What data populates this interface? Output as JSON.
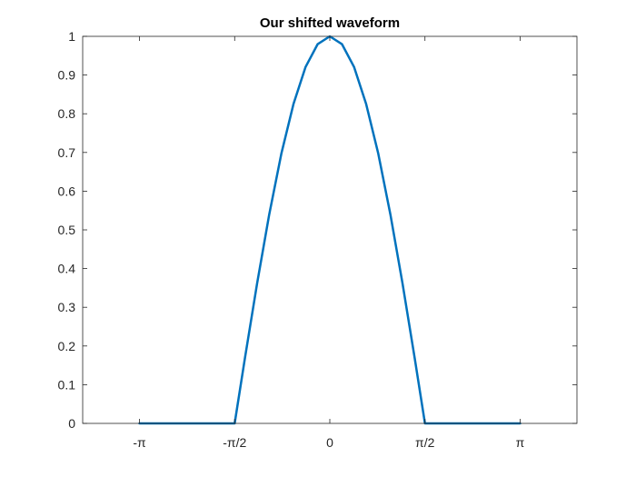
{
  "chart_data": {
    "type": "line",
    "title": "Our shifted waveform",
    "xlabel": "",
    "ylabel": "",
    "xlim": [
      -4.08,
      4.08
    ],
    "ylim": [
      0,
      1
    ],
    "grid": false,
    "box": true,
    "x_ticks": [
      {
        "value": -3.14159,
        "label": "-π"
      },
      {
        "value": -1.5708,
        "label": "-π/2"
      },
      {
        "value": 0,
        "label": "0"
      },
      {
        "value": 1.5708,
        "label": "π/2"
      },
      {
        "value": 3.14159,
        "label": "π"
      }
    ],
    "y_ticks": [
      {
        "value": 0,
        "label": "0"
      },
      {
        "value": 0.1,
        "label": "0.1"
      },
      {
        "value": 0.2,
        "label": "0.2"
      },
      {
        "value": 0.3,
        "label": "0.3"
      },
      {
        "value": 0.4,
        "label": "0.4"
      },
      {
        "value": 0.5,
        "label": "0.5"
      },
      {
        "value": 0.6,
        "label": "0.6"
      },
      {
        "value": 0.7,
        "label": "0.7"
      },
      {
        "value": 0.8,
        "label": "0.8"
      },
      {
        "value": 0.9,
        "label": "0.9"
      },
      {
        "value": 1,
        "label": "1"
      }
    ],
    "series": [
      {
        "color": "#0072BD",
        "x": [
          -3.1416,
          -2.5,
          -2.0,
          -1.6,
          -1.5708,
          -1.4,
          -1.2,
          -1.0,
          -0.8,
          -0.6,
          -0.4,
          -0.2,
          0,
          0.2,
          0.4,
          0.6,
          0.8,
          1.0,
          1.2,
          1.4,
          1.5708,
          1.6,
          2.0,
          2.5,
          3.1416
        ],
        "y": [
          0,
          0,
          0,
          0,
          0.0,
          0.17,
          0.362,
          0.54,
          0.697,
          0.825,
          0.921,
          0.98,
          1.0,
          0.98,
          0.921,
          0.825,
          0.697,
          0.54,
          0.362,
          0.17,
          0.0,
          0,
          0,
          0,
          0
        ]
      }
    ]
  }
}
